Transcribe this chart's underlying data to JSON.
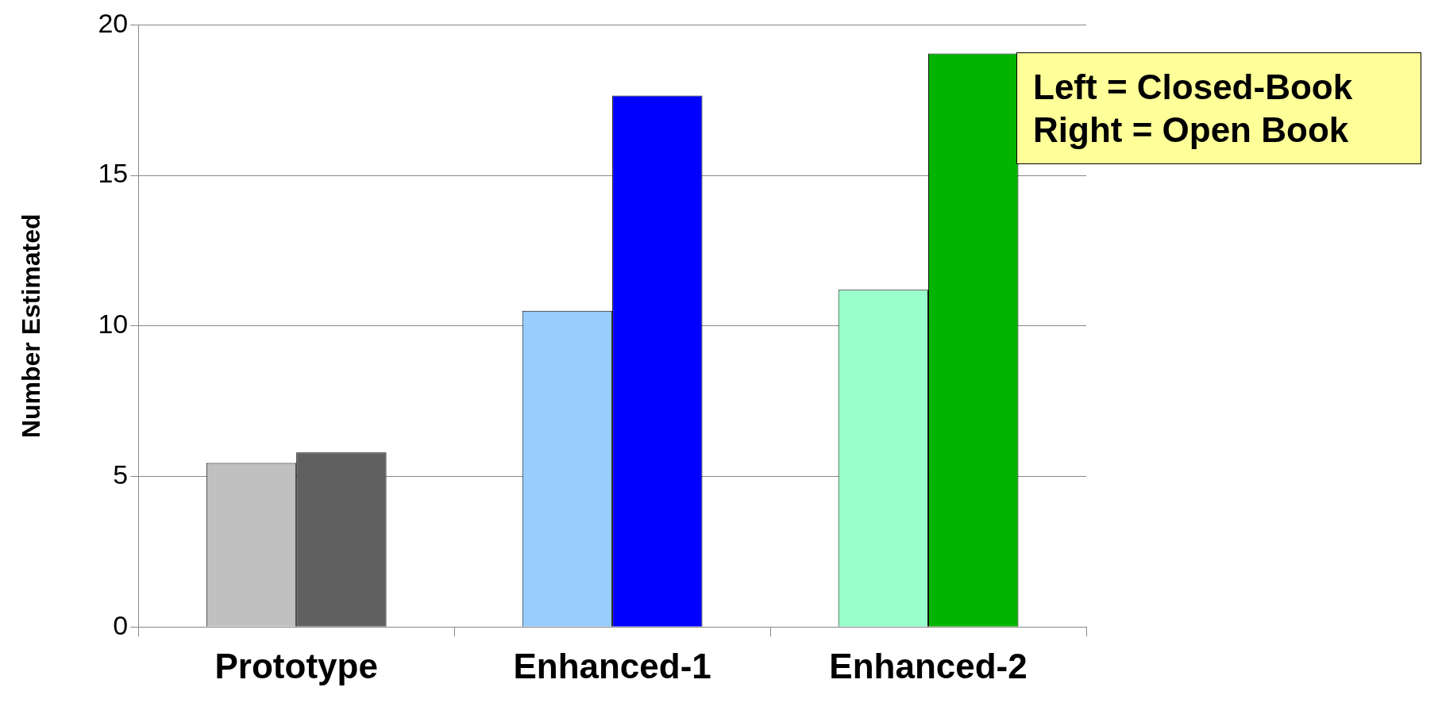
{
  "chart_data": {
    "type": "bar",
    "ylabel": "Number Estimated",
    "categories": [
      "Prototype",
      "Enhanced-1",
      "Enhanced-2"
    ],
    "series": [
      {
        "colors": [
          "#c0c0c0",
          "#99ccff",
          "#99ffcc"
        ],
        "values": [
          5.45,
          10.5,
          11.2
        ]
      },
      {
        "colors": [
          "#606060",
          "#0000ff",
          "#00b400"
        ],
        "values": [
          5.8,
          17.65,
          19.05
        ]
      }
    ],
    "ylim": [
      0,
      20
    ],
    "yticks": [
      0,
      5,
      10,
      15,
      20
    ],
    "grid": "y",
    "legend": false,
    "annotations": [
      "Left = Closed-Book",
      "Right = Open Book"
    ]
  }
}
